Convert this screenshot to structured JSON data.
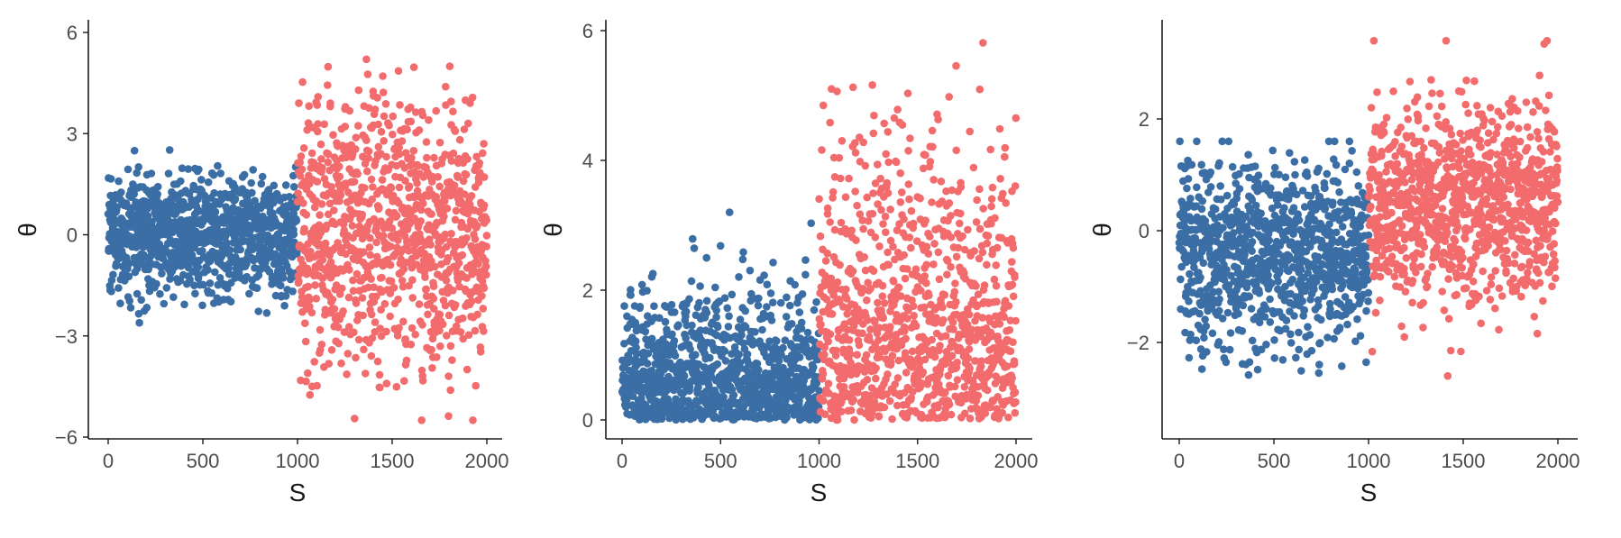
{
  "colors": {
    "group_a": "#3b6ea5",
    "group_b": "#f26b6d",
    "axis": "#1a1a1a",
    "tick_text": "#4d4d4d"
  },
  "chart_data": [
    {
      "type": "scatter",
      "xlabel": "S",
      "ylabel": "θ",
      "xlim": [
        0,
        2000
      ],
      "ylim": [
        -6,
        6
      ],
      "xticks": [
        0,
        500,
        1000,
        1500,
        2000
      ],
      "yticks": [
        -6,
        -3,
        0,
        3,
        6
      ],
      "ytick_labels": [
        "−6",
        "−3",
        "0",
        "3",
        "6"
      ],
      "grid": false,
      "series": [
        {
          "color": "group_a",
          "x_range": [
            0,
            1000
          ],
          "points": 1000,
          "distribution": "normal",
          "mean": 0,
          "sd": 0.9,
          "clip": [
            -3.3,
            3.2
          ]
        },
        {
          "color": "group_b",
          "x_range": [
            1000,
            2000
          ],
          "points": 1000,
          "distribution": "normal",
          "mean": 0,
          "sd": 2.0,
          "clip": [
            -5.5,
            5.9
          ]
        }
      ]
    },
    {
      "type": "scatter",
      "xlabel": "S",
      "ylabel": "θ",
      "xlim": [
        0,
        2000
      ],
      "ylim": [
        0,
        6
      ],
      "xticks": [
        0,
        500,
        1000,
        1500,
        2000
      ],
      "yticks": [
        0,
        2,
        4,
        6
      ],
      "ytick_labels": [
        "0",
        "2",
        "4",
        "6"
      ],
      "grid": false,
      "series": [
        {
          "color": "group_a",
          "x_range": [
            0,
            1000
          ],
          "points": 1000,
          "distribution": "half-normal",
          "mean": 0,
          "sd": 0.9,
          "clip": [
            0,
            3.2
          ]
        },
        {
          "color": "group_b",
          "x_range": [
            1000,
            2000
          ],
          "points": 1000,
          "distribution": "half-normal",
          "mean": 0,
          "sd": 2.0,
          "clip": [
            0,
            5.9
          ]
        }
      ]
    },
    {
      "type": "scatter",
      "xlabel": "S",
      "ylabel": "θ",
      "xlim": [
        0,
        2000
      ],
      "ylim": [
        -3.7,
        3.5
      ],
      "xticks": [
        0,
        500,
        1000,
        1500,
        2000
      ],
      "yticks": [
        -2,
        0,
        2
      ],
      "ytick_labels": [
        "−2",
        "0",
        "2"
      ],
      "grid": false,
      "series": [
        {
          "color": "group_a",
          "x_range": [
            0,
            1000
          ],
          "points": 1000,
          "distribution": "normal",
          "mean": -0.4,
          "sd": 0.85,
          "clip": [
            -3.5,
            1.6
          ]
        },
        {
          "color": "group_b",
          "x_range": [
            1000,
            2000
          ],
          "points": 1000,
          "distribution": "normal",
          "mean": 0.45,
          "sd": 0.9,
          "clip": [
            -2.9,
            3.4
          ]
        }
      ]
    }
  ]
}
